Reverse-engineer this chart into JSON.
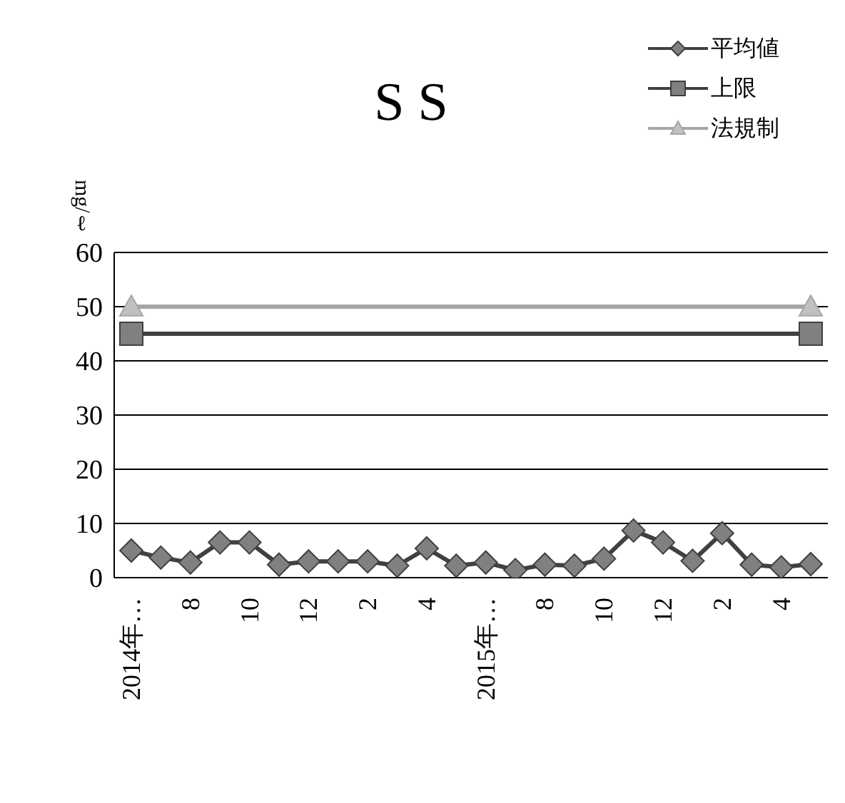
{
  "chart_data": {
    "type": "line",
    "title": "S S",
    "ylabel": "mg/ℓ",
    "categories": [
      "2014年…",
      null,
      "8",
      null,
      "10",
      null,
      "12",
      null,
      "2",
      null,
      "4",
      null,
      "2015年…",
      null,
      "8",
      null,
      "10",
      null,
      "12",
      null,
      "2",
      null,
      "4",
      null
    ],
    "series": [
      {
        "name": "平均値",
        "color": "#404040",
        "marker": "diamond",
        "values": [
          5,
          3.7,
          2.8,
          6.5,
          6.5,
          2.4,
          3,
          3,
          3,
          2.2,
          5.4,
          2.2,
          2.8,
          1.4,
          2.4,
          2.2,
          3.5,
          8.7,
          6.5,
          3.1,
          8.2,
          2.4,
          1.9,
          2.5
        ]
      },
      {
        "name": "上限",
        "color": "#404040",
        "marker": "square",
        "values": [
          45,
          null,
          null,
          null,
          null,
          null,
          null,
          null,
          null,
          null,
          null,
          null,
          null,
          null,
          null,
          null,
          null,
          null,
          null,
          null,
          null,
          null,
          null,
          45
        ]
      },
      {
        "name": "法規制",
        "color": "#a6a6a6",
        "marker": "triangle",
        "values": [
          50,
          null,
          null,
          null,
          null,
          null,
          null,
          null,
          null,
          null,
          null,
          null,
          null,
          null,
          null,
          null,
          null,
          null,
          null,
          null,
          null,
          null,
          null,
          50
        ]
      }
    ],
    "ylim": [
      0,
      60
    ],
    "yticks": [
      0,
      10,
      20,
      30,
      40,
      50,
      60
    ],
    "grid": "y",
    "legend": "top right",
    "line_style": "solid"
  }
}
